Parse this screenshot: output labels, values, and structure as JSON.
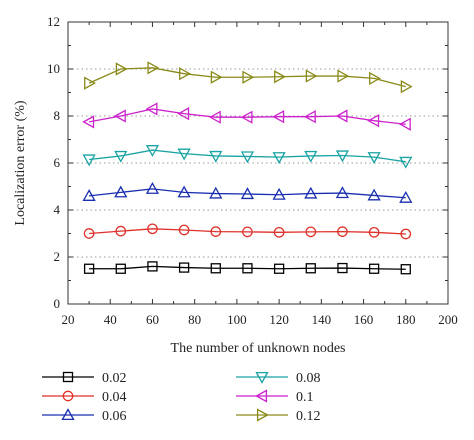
{
  "chart_data": {
    "type": "line",
    "title": "",
    "xlabel": "The number of unknown nodes",
    "ylabel": "Localization error (%)",
    "xlim": [
      20,
      200
    ],
    "ylim": [
      0,
      12
    ],
    "xticks": [
      20,
      40,
      60,
      80,
      100,
      120,
      140,
      160,
      180,
      200
    ],
    "yticks": [
      0,
      2,
      4,
      6,
      8,
      10,
      12
    ],
    "grid": "horizontal dotted",
    "legend_position": "below",
    "x": [
      30,
      45,
      60,
      75,
      90,
      105,
      120,
      135,
      150,
      165,
      180
    ],
    "series": [
      {
        "name": "0.02",
        "color": "#000000",
        "marker": "square",
        "values": [
          1.5,
          1.5,
          1.6,
          1.55,
          1.52,
          1.52,
          1.5,
          1.52,
          1.53,
          1.5,
          1.48
        ]
      },
      {
        "name": "0.04",
        "color": "#e0302a",
        "marker": "circle",
        "values": [
          3.0,
          3.1,
          3.2,
          3.15,
          3.08,
          3.07,
          3.05,
          3.07,
          3.08,
          3.05,
          2.98
        ]
      },
      {
        "name": "0.06",
        "color": "#1a2fb0",
        "marker": "triangle-up",
        "values": [
          4.6,
          4.75,
          4.9,
          4.75,
          4.7,
          4.68,
          4.65,
          4.7,
          4.72,
          4.62,
          4.52
        ]
      },
      {
        "name": "0.08",
        "color": "#1aa3a3",
        "marker": "triangle-down",
        "values": [
          6.15,
          6.3,
          6.55,
          6.4,
          6.3,
          6.28,
          6.25,
          6.3,
          6.32,
          6.25,
          6.05
        ]
      },
      {
        "name": "0.1",
        "color": "#cc22cc",
        "marker": "triangle-left",
        "values": [
          7.75,
          8.0,
          8.3,
          8.1,
          7.95,
          7.95,
          7.97,
          7.97,
          8.0,
          7.8,
          7.65
        ]
      },
      {
        "name": "0.12",
        "color": "#8a8a1a",
        "marker": "triangle-right",
        "values": [
          9.4,
          10.0,
          10.05,
          9.8,
          9.65,
          9.65,
          9.67,
          9.7,
          9.7,
          9.6,
          9.25
        ]
      }
    ]
  }
}
